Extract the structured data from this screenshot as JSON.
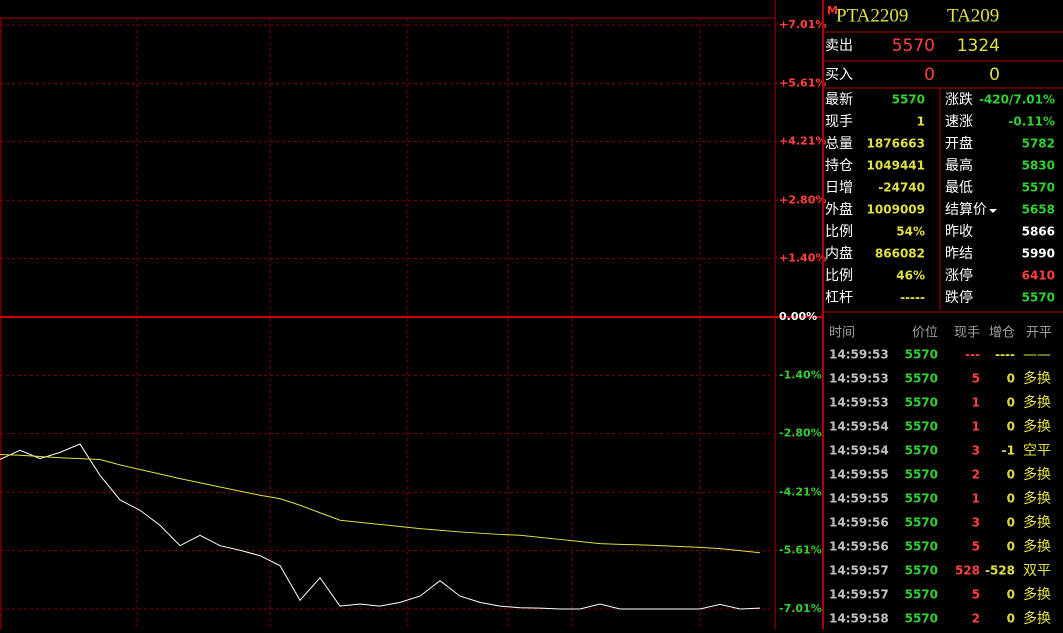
{
  "chart_data": {
    "type": "line",
    "categories": [
      null,
      null,
      null,
      null,
      null,
      null,
      null,
      null,
      null,
      null,
      null,
      null,
      null,
      null,
      null,
      null,
      null,
      null,
      null,
      null,
      null,
      null,
      null,
      null,
      null,
      null,
      null,
      null,
      null,
      null,
      null,
      null,
      null,
      null,
      null,
      null,
      null,
      null,
      null
    ],
    "series": [
      {
        "color": "#ffffff",
        "values": [
          -3.42,
          -3.2,
          -3.4,
          -3.25,
          -3.05,
          -3.8,
          -4.39,
          -4.64,
          -5.0,
          -5.49,
          -5.24,
          -5.49,
          -5.6,
          -5.73,
          -5.97,
          -6.8,
          -6.26,
          -6.94,
          -6.89,
          -6.94,
          -6.85,
          -6.7,
          -6.33,
          -6.7,
          -6.85,
          -6.94,
          -6.98,
          -6.99,
          -7.01,
          -7.01,
          -6.89,
          -7.01,
          -7.01,
          -7.01,
          -7.01,
          -7.01,
          -6.9,
          -7.01,
          -6.99
        ]
      },
      {
        "color": "#e0e040",
        "values": [
          -3.3,
          -3.32,
          -3.35,
          -3.38,
          -3.4,
          -3.42,
          -3.55,
          -3.66,
          -3.77,
          -3.88,
          -3.98,
          -4.08,
          -4.18,
          -4.28,
          -4.36,
          -4.52,
          -4.7,
          -4.88,
          -4.93,
          -4.98,
          -5.03,
          -5.08,
          -5.12,
          -5.16,
          -5.19,
          -5.22,
          -5.24,
          -5.29,
          -5.34,
          -5.39,
          -5.44,
          -5.46,
          -5.47,
          -5.49,
          -5.51,
          -5.53,
          -5.56,
          -5.61,
          -5.66
        ]
      }
    ],
    "ylim": [
      -7.01,
      7.01
    ],
    "yticks": [
      {
        "value": 7.01,
        "label": "+7.01%"
      },
      {
        "value": 5.61,
        "label": "+5.61%"
      },
      {
        "value": 4.21,
        "label": "+4.21%"
      },
      {
        "value": 2.8,
        "label": "+2.80%"
      },
      {
        "value": 1.4,
        "label": "+1.40%"
      },
      {
        "value": 0,
        "label": "0.00%"
      },
      {
        "value": -1.4,
        "label": "-1.40%"
      },
      {
        "value": -2.8,
        "label": "-2.80%"
      },
      {
        "value": -4.21,
        "label": "-4.21%"
      },
      {
        "value": -5.61,
        "label": "-5.61%"
      },
      {
        "value": -7.01,
        "label": "-7.01%"
      }
    ],
    "grid": true
  },
  "quote": {
    "marker": "M",
    "symbol": "PTA2209",
    "code": "TA209",
    "sell": [
      "卖出",
      "5570",
      "1324"
    ],
    "buy": [
      "买入",
      "0",
      "0"
    ],
    "stats": [
      [
        "最新",
        "5570",
        "涨跌",
        "-420/7.01%"
      ],
      [
        "现手",
        "1",
        "速涨",
        "-0.11%"
      ],
      [
        "总量",
        "1876663",
        "开盘",
        "5782"
      ],
      [
        "持仓",
        "1049441",
        "最高",
        "5830"
      ],
      [
        "日增",
        "-24740",
        "最低",
        "5570"
      ],
      [
        "外盘",
        "1009009",
        "结算价",
        "5658"
      ],
      [
        "比例",
        "54%",
        "昨收",
        "5866"
      ],
      [
        "内盘",
        "866082",
        "昨结",
        "5990"
      ],
      [
        "比例",
        "46%",
        "涨停",
        "6410"
      ],
      [
        "杠杆",
        "-----",
        "跌停",
        "5570"
      ]
    ]
  },
  "trades": {
    "headers": [
      "时间",
      "价位",
      "现手",
      "增仓",
      "开平"
    ],
    "rows": [
      [
        "14:59:53",
        "5570",
        "---",
        "----",
        "——"
      ],
      [
        "14:59:53",
        "5570",
        "5",
        "0",
        "多换"
      ],
      [
        "14:59:53",
        "5570",
        "1",
        "0",
        "多换"
      ],
      [
        "14:59:54",
        "5570",
        "1",
        "0",
        "多换"
      ],
      [
        "14:59:54",
        "5570",
        "3",
        "-1",
        "空平"
      ],
      [
        "14:59:55",
        "5570",
        "2",
        "0",
        "多换"
      ],
      [
        "14:59:55",
        "5570",
        "1",
        "0",
        "多换"
      ],
      [
        "14:59:56",
        "5570",
        "3",
        "0",
        "多换"
      ],
      [
        "14:59:56",
        "5570",
        "5",
        "0",
        "多换"
      ],
      [
        "14:59:57",
        "5570",
        "528",
        "-528",
        "双平"
      ],
      [
        "14:59:57",
        "5570",
        "5",
        "0",
        "多换"
      ],
      [
        "14:59:58",
        "5570",
        "2",
        "0",
        "多换"
      ]
    ]
  }
}
